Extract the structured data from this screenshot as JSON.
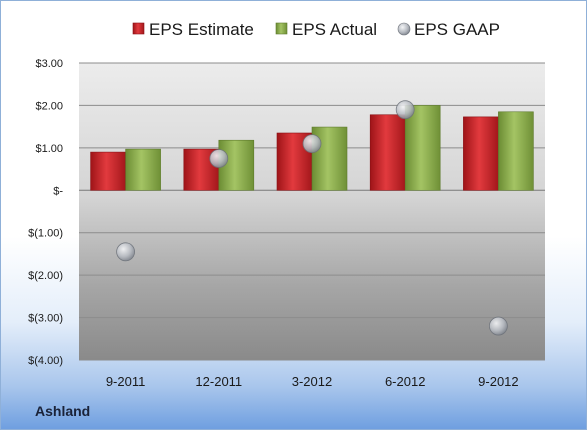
{
  "company": "Ashland",
  "chart_data": {
    "type": "bar",
    "categories": [
      "9-2011",
      "12-2011",
      "3-2012",
      "6-2012",
      "9-2012"
    ],
    "series": [
      {
        "name": "EPS Estimate",
        "kind": "bar",
        "color": "#cc2024",
        "values": [
          0.9,
          0.97,
          1.35,
          1.78,
          1.73
        ]
      },
      {
        "name": "EPS Actual",
        "kind": "bar",
        "color": "#8cb04a",
        "values": [
          0.97,
          1.18,
          1.49,
          2.0,
          1.85
        ]
      },
      {
        "name": "EPS GAAP",
        "kind": "scatter",
        "color": "#b8bcc4",
        "values": [
          -1.45,
          0.75,
          1.1,
          1.9,
          -3.2
        ]
      }
    ],
    "ylim": [
      -4,
      3
    ],
    "yticks": [
      3,
      2,
      1,
      0,
      -1,
      -2,
      -3,
      -4
    ],
    "ytick_labels": [
      "$3.00",
      "$2.00",
      "$1.00",
      "$-",
      "$(1.00)",
      "$(2.00)",
      "$(3.00)",
      "$(4.00)"
    ],
    "legend_position": "top",
    "grid": true
  }
}
